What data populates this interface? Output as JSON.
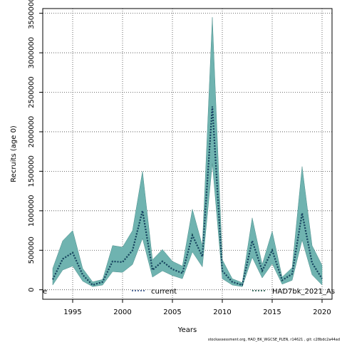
{
  "chart_data": {
    "type": "line",
    "xlabel": "Years",
    "ylabel": "Recruits (age 0)",
    "xlim": [
      1992,
      2021
    ],
    "ylim": [
      -120000,
      3560000
    ],
    "x_ticks": [
      1995,
      2000,
      2005,
      2010,
      2015,
      2020
    ],
    "y_ticks": [
      0,
      500000,
      1000000,
      1500000,
      2000000,
      2500000,
      3000000,
      3500000
    ],
    "grid": true,
    "legend_position": "bottom",
    "colors": {
      "band": "#6fb3b0",
      "band_edge": "#4d8f8c",
      "current": "#1f3f7a",
      "run": "#0b4a3a"
    },
    "band": {
      "x": [
        1993,
        1994,
        1995,
        1996,
        1997,
        1998,
        1999,
        2000,
        2001,
        2002,
        2003,
        2004,
        2005,
        2006,
        2007,
        2008,
        2009,
        2010,
        2011,
        2012,
        2013,
        2014,
        2015,
        2016,
        2017,
        2018,
        2019,
        2020
      ],
      "lower": [
        60000,
        250000,
        300000,
        110000,
        40000,
        60000,
        230000,
        220000,
        320000,
        650000,
        160000,
        240000,
        180000,
        140000,
        480000,
        290000,
        1600000,
        140000,
        60000,
        40000,
        410000,
        150000,
        330000,
        70000,
        120000,
        630000,
        190000,
        60000
      ],
      "upper": [
        270000,
        620000,
        750000,
        270000,
        100000,
        130000,
        560000,
        540000,
        750000,
        1500000,
        380000,
        510000,
        360000,
        300000,
        1020000,
        560000,
        3450000,
        380000,
        140000,
        90000,
        910000,
        320000,
        740000,
        160000,
        280000,
        1560000,
        560000,
        310000
      ]
    },
    "series": [
      {
        "name": "current",
        "x": [
          1993,
          1994,
          1995,
          1996,
          1997,
          1998,
          1999,
          2000,
          2001,
          2002,
          2003,
          2004,
          2005,
          2006,
          2007,
          2008,
          2009,
          2010,
          2011,
          2012,
          2013,
          2014,
          2015,
          2016,
          2017,
          2018,
          2019,
          2020
        ],
        "values": [
          130000,
          390000,
          470000,
          190000,
          60000,
          100000,
          360000,
          350000,
          500000,
          1000000,
          250000,
          360000,
          260000,
          210000,
          690000,
          420000,
          2320000,
          240000,
          100000,
          60000,
          620000,
          240000,
          500000,
          120000,
          200000,
          970000,
          340000,
          140000
        ]
      },
      {
        "name": "HAD7bk_2021_As",
        "x": [
          1993,
          1994,
          1995,
          1996,
          1997,
          1998,
          1999,
          2000,
          2001,
          2002,
          2003,
          2004,
          2005,
          2006,
          2007,
          2008,
          2009,
          2010,
          2011,
          2012,
          2013,
          2014,
          2015,
          2016,
          2017,
          2018,
          2019,
          2020
        ],
        "values": [
          130000,
          390000,
          470000,
          190000,
          60000,
          100000,
          360000,
          350000,
          500000,
          1000000,
          250000,
          360000,
          260000,
          210000,
          690000,
          420000,
          2320000,
          240000,
          100000,
          60000,
          620000,
          240000,
          500000,
          120000,
          200000,
          970000,
          340000,
          140000
        ]
      }
    ],
    "legend": {
      "stub": "e",
      "entries": [
        "current",
        "HAD7bk_2021_As"
      ]
    },
    "footer": "stockassessment.org,  HAD_BK_WGCSE_PLEN,  r14621 ,  git: c28bdc2a44ad"
  }
}
